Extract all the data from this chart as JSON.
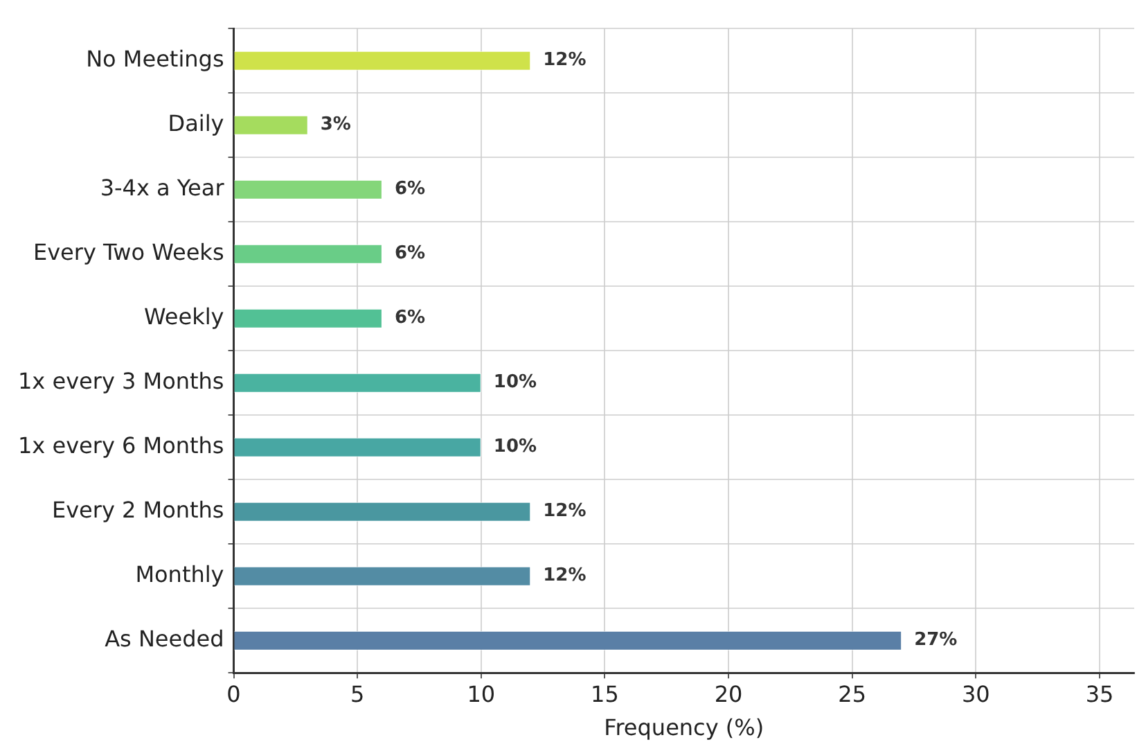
{
  "chart_data": {
    "type": "bar",
    "orientation": "horizontal",
    "xlabel": "Frequency (%)",
    "categories": [
      "No Meetings",
      "Daily",
      "3-4x a Year",
      "Every Two Weeks",
      "Weekly",
      "1x every 3 Months",
      "1x every 6 Months",
      "Every 2 Months",
      "Monthly",
      "As Needed"
    ],
    "values": [
      12,
      3,
      6,
      6,
      6,
      10,
      10,
      12,
      12,
      27
    ],
    "colors": [
      "#cfe24a",
      "#a5dc5e",
      "#84d67a",
      "#69cd87",
      "#52c195",
      "#4ab3a0",
      "#48a7a3",
      "#4a97a0",
      "#538ca4",
      "#5a7fa6"
    ],
    "value_labels": [
      "12%",
      "3%",
      "6%",
      "6%",
      "6%",
      "10%",
      "10%",
      "12%",
      "12%",
      "27%"
    ],
    "xlim": [
      0,
      36.4
    ],
    "xticks": [
      0,
      5,
      10,
      15,
      20,
      25,
      30,
      35
    ],
    "grid": true
  }
}
